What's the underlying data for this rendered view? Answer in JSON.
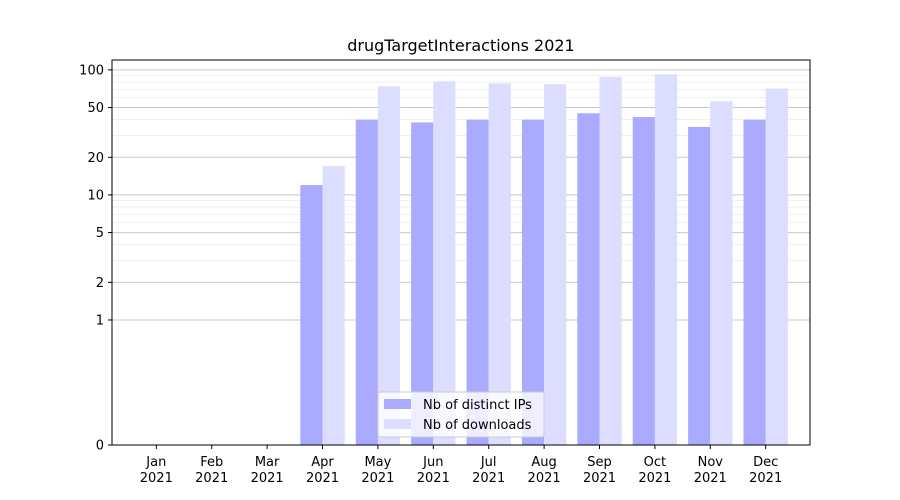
{
  "chart_data": {
    "type": "bar",
    "title": "drugTargetInteractions 2021",
    "xlabel": "",
    "ylabel": "",
    "y_scale": "symlog",
    "ylim": [
      0,
      120
    ],
    "y_ticks": [
      0,
      1,
      2,
      5,
      10,
      20,
      50,
      100
    ],
    "grid": "horizontal",
    "legend_position": "bottom-center",
    "categories": [
      [
        "Jan",
        "2021"
      ],
      [
        "Feb",
        "2021"
      ],
      [
        "Mar",
        "2021"
      ],
      [
        "Apr",
        "2021"
      ],
      [
        "May",
        "2021"
      ],
      [
        "Jun",
        "2021"
      ],
      [
        "Jul",
        "2021"
      ],
      [
        "Aug",
        "2021"
      ],
      [
        "Sep",
        "2021"
      ],
      [
        "Oct",
        "2021"
      ],
      [
        "Nov",
        "2021"
      ],
      [
        "Dec",
        "2021"
      ]
    ],
    "series": [
      {
        "name": "Nb of distinct IPs",
        "color": "#aaaaff",
        "values": [
          0,
          0,
          0,
          12,
          40,
          38,
          40,
          40,
          45,
          42,
          35,
          40
        ]
      },
      {
        "name": "Nb of downloads",
        "color": "#ddddff",
        "values": [
          0,
          0,
          0,
          17,
          74,
          81,
          78,
          77,
          88,
          92,
          56,
          71
        ]
      }
    ]
  }
}
